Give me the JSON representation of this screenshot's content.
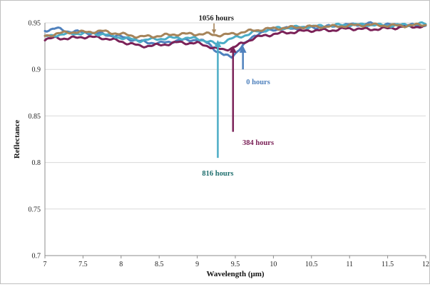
{
  "chart_data": {
    "type": "line",
    "title": "",
    "xlabel": "Wavelength (μm)",
    "ylabel": "Reflectance",
    "xlim": [
      7,
      12
    ],
    "ylim": [
      0.7,
      0.95
    ],
    "x_ticks": [
      "7",
      "7.5",
      "8",
      "8.5",
      "9",
      "9.5",
      "10",
      "10.5",
      "11",
      "11.5",
      "12"
    ],
    "y_ticks": [
      "0.7",
      "0.75",
      "0.8",
      "0.85",
      "0.9",
      "0.95"
    ],
    "grid": "horizontal",
    "legend": "none",
    "series": [
      {
        "name": "0 hours",
        "color": "#4f81bd",
        "x": [
          7.0,
          7.15,
          7.3,
          7.5,
          7.75,
          8.0,
          8.25,
          8.5,
          8.75,
          9.0,
          9.15,
          9.25,
          9.35,
          9.45,
          9.6,
          9.75,
          10.0,
          10.25,
          10.5,
          10.75,
          11.0,
          11.25,
          11.5,
          11.75,
          12.0
        ],
        "y": [
          0.942,
          0.944,
          0.941,
          0.94,
          0.938,
          0.935,
          0.93,
          0.928,
          0.931,
          0.932,
          0.928,
          0.92,
          0.915,
          0.914,
          0.925,
          0.937,
          0.943,
          0.944,
          0.945,
          0.946,
          0.948,
          0.949,
          0.948,
          0.947,
          0.948
        ]
      },
      {
        "name": "384 hours",
        "color": "#7b2258",
        "x": [
          7.0,
          7.15,
          7.3,
          7.5,
          7.75,
          8.0,
          8.25,
          8.5,
          8.75,
          9.0,
          9.15,
          9.25,
          9.35,
          9.45,
          9.6,
          9.75,
          10.0,
          10.25,
          10.5,
          10.75,
          11.0,
          11.25,
          11.5,
          11.75,
          12.0
        ],
        "y": [
          0.932,
          0.934,
          0.933,
          0.935,
          0.934,
          0.93,
          0.925,
          0.926,
          0.929,
          0.928,
          0.925,
          0.922,
          0.921,
          0.923,
          0.928,
          0.934,
          0.938,
          0.94,
          0.942,
          0.942,
          0.944,
          0.943,
          0.944,
          0.946,
          0.946
        ]
      },
      {
        "name": "816 hours",
        "color": "#4bacc6",
        "x": [
          7.0,
          7.15,
          7.3,
          7.5,
          7.75,
          8.0,
          8.25,
          8.5,
          8.75,
          9.0,
          9.15,
          9.25,
          9.35,
          9.45,
          9.6,
          9.75,
          10.0,
          10.25,
          10.5,
          10.75,
          11.0,
          11.25,
          11.5,
          11.75,
          12.0
        ],
        "y": [
          0.935,
          0.937,
          0.938,
          0.939,
          0.938,
          0.934,
          0.931,
          0.933,
          0.934,
          0.933,
          0.93,
          0.927,
          0.93,
          0.933,
          0.936,
          0.94,
          0.944,
          0.945,
          0.946,
          0.947,
          0.948,
          0.948,
          0.947,
          0.948,
          0.949
        ]
      },
      {
        "name": "1056 hours",
        "color": "#a6845a",
        "x": [
          7.0,
          7.15,
          7.3,
          7.5,
          7.75,
          8.0,
          8.25,
          8.5,
          8.75,
          9.0,
          9.15,
          9.25,
          9.35,
          9.45,
          9.6,
          9.75,
          10.0,
          10.25,
          10.5,
          10.75,
          11.0,
          11.25,
          11.5,
          11.75,
          12.0
        ],
        "y": [
          0.936,
          0.938,
          0.94,
          0.94,
          0.941,
          0.938,
          0.935,
          0.936,
          0.938,
          0.938,
          0.938,
          0.937,
          0.937,
          0.938,
          0.94,
          0.942,
          0.944,
          0.945,
          0.946,
          0.946,
          0.947,
          0.948,
          0.947,
          0.947,
          0.948
        ]
      }
    ],
    "annotations": [
      {
        "text": "1056 hours",
        "color": "#1a1a1a",
        "series": "1056 hours",
        "label_at": [
          9.25,
          0.9525
        ],
        "arrow_tip": [
          9.22,
          0.939
        ]
      },
      {
        "text": "0 hours",
        "color": "#4f81bd",
        "series": "0 hours",
        "label_at": [
          9.8,
          0.884
        ],
        "arrow_tip": [
          9.6,
          0.924
        ],
        "arrow_tail": [
          9.6,
          0.9
        ]
      },
      {
        "text": "384 hours",
        "color": "#7b2258",
        "series": "384 hours",
        "label_at": [
          9.8,
          0.819
        ],
        "arrow_tip": [
          9.47,
          0.924
        ],
        "arrow_tail": [
          9.47,
          0.833
        ]
      },
      {
        "text": "816 hours",
        "color": "#1f6f6e",
        "series": "816 hours",
        "label_at": [
          9.27,
          0.786
        ],
        "arrow_tip": [
          9.27,
          0.93
        ],
        "arrow_tail": [
          9.27,
          0.805
        ]
      }
    ]
  }
}
